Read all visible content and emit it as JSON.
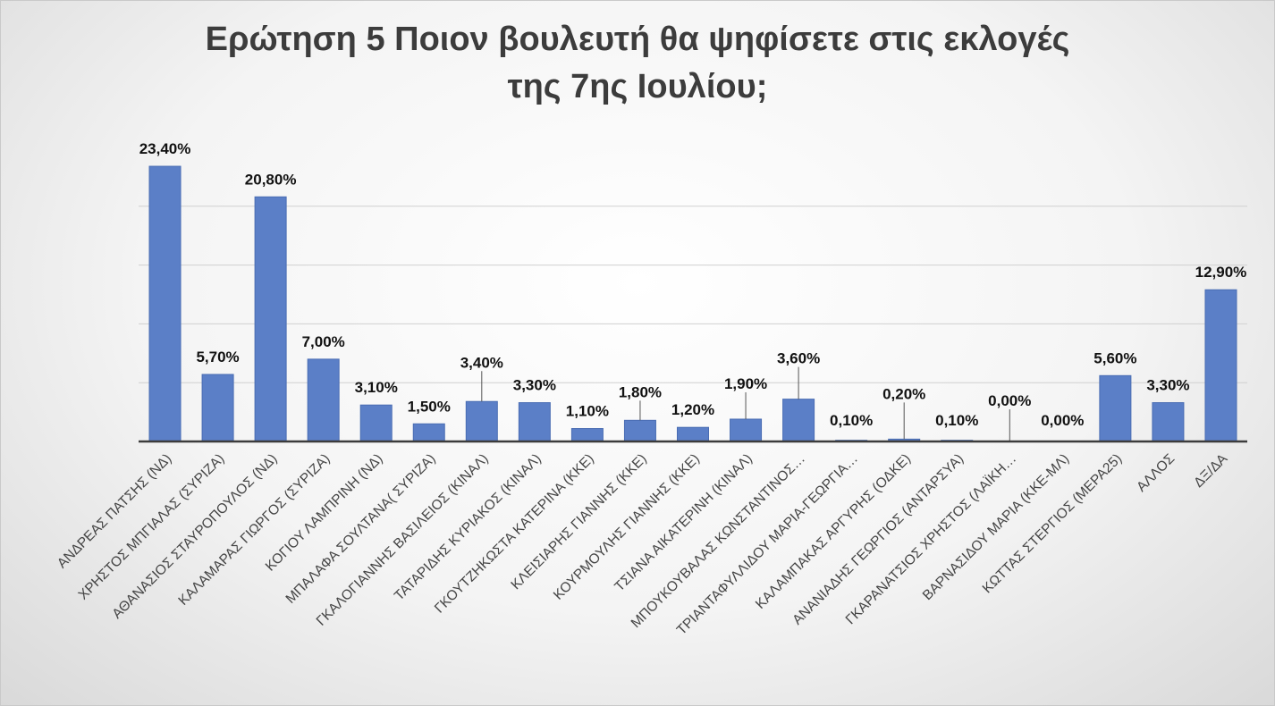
{
  "chart_data": {
    "type": "bar",
    "title_lines": [
      "Ερώτηση 5 Ποιον βουλευτή θα ψηφίσετε στις εκλογές",
      "της 7ης Ιουλίου;"
    ],
    "categories": [
      "ΑΝΔΡΕΑΣ ΠΑΤΣΗΣ (ΝΔ)",
      "ΧΡΗΣΤΟΣ ΜΠΓΙΑΛΑΣ (ΣΥΡΙΖΑ)",
      "ΑΘΑΝΑΣΙΟΣ ΣΤΑΥΡΟΠΟΥΛΟΣ (ΝΔ)",
      "ΚΑΛΑΜΑΡΑΣ ΓΙΩΡΓΟΣ (ΣΥΡΙΖΑ)",
      "ΚΟΓΙΟΥ ΛΑΜΠΡΙΝΗ (ΝΔ)",
      "ΜΠΑΛΑΦΑ ΣΟΥΛΤΑΝΑ( ΣΥΡΙΖΑ)",
      "ΓΚΑΛΟΓΙΑΝΝΗΣ ΒΑΣΙΛΕΙΟΣ (ΚΙΝΑΛ)",
      "ΤΑΤΑΡΙΔΗΣ ΚΥΡΙΑΚΟΣ (ΚΙΝΑΛ)",
      "ΓΚΟΥΤΖΗΚΩΣΤΑ ΚΑΤΕΡΙΝΑ (ΚΚΕ)",
      "ΚΛΕΙΣΙΑΡΗΣ ΓΙΑΝΝΗΣ (ΚΚΕ)",
      "ΚΟΥΡΜΟΥΛΗΣ ΓΙΑΝΝΗΣ (ΚΚΕ)",
      "ΤΣΙΑΝΑ ΑΙΚΑΤΕΡΙΝΗ (ΚΙΝΑΛ)",
      "ΜΠΟΥΚΟΥΒΑΛΑΣ ΚΩΝΣΤΑΝΤΙΝΟΣ…",
      "ΤΡΙΑΝΤΑΦΥΛΛΙΔΟΥ ΜΑΡΙΑ-ΓΕΩΡΓΙΑ…",
      "ΚΑΛΑΜΠΑΚΑΣ ΑΡΓΥΡΗΣ (ΟΔΚΕ)",
      "ΑΝΑΝΙΑΔΗΣ ΓΕΩΡΓΙΟΣ (ΑΝΤΑΡΣΥΑ)",
      "ΓΚΑΡΑΝΑΤΣΙΟΣ ΧΡΗΣΤΟΣ (ΛΑΪΚΗ…",
      "ΒΑΡΝΑΣΙΔΟΥ ΜΑΡΙΑ (ΚΚΕ-ΜΛ)",
      "ΚΩΤΤΑΣ ΣΤΕΡΓΙΟΣ (ΜΕΡΑ25)",
      "ΑΛΛΟΣ",
      "ΔΞ/ΔΑ"
    ],
    "values": [
      23.4,
      5.7,
      20.8,
      7.0,
      3.1,
      1.5,
      3.4,
      3.3,
      1.1,
      1.8,
      1.2,
      1.9,
      3.6,
      0.1,
      0.2,
      0.1,
      0.0,
      0.0,
      5.6,
      3.3,
      12.9
    ],
    "data_labels": [
      "23,40%",
      "5,70%",
      "20,80%",
      "7,00%",
      "3,10%",
      "1,50%",
      "3,40%",
      "3,30%",
      "1,10%",
      "1,80%",
      "1,20%",
      "1,90%",
      "3,60%",
      "0,10%",
      "0,20%",
      "0,10%",
      "0,00%",
      "0,00%",
      "5,60%",
      "3,30%",
      "12,90%"
    ],
    "ylim": [
      0,
      25
    ],
    "grid": true,
    "legend": "none",
    "colors": {
      "bar": "#5b7fc7",
      "bar_edge": "#4a6db3",
      "grid": "#d0d0d0",
      "axis": "#3c3c3c",
      "leader": "#555555"
    }
  }
}
